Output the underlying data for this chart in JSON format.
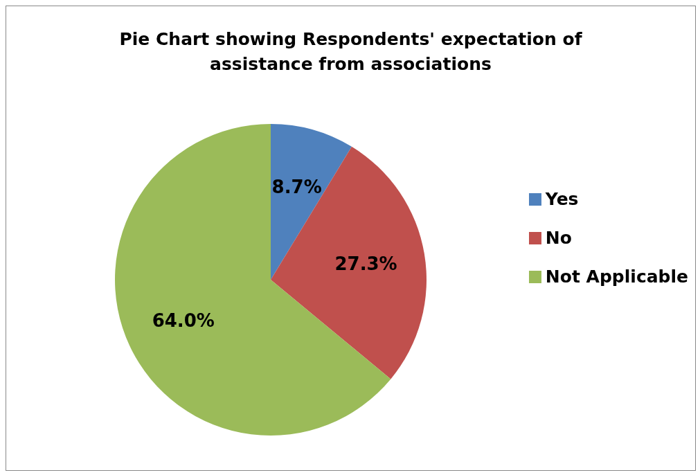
{
  "chart_data": {
    "type": "pie",
    "title": "Pie Chart showing Respondents' expectation of assistance from associations",
    "categories": [
      "Yes",
      "No",
      "Not Applicable"
    ],
    "values": [
      8.7,
      27.3,
      64.0
    ],
    "value_labels": [
      "8.7%",
      "27.3%",
      "64.0%"
    ],
    "colors": [
      "#4f81bd",
      "#c0504d",
      "#9bbb59"
    ],
    "legend": "right"
  }
}
